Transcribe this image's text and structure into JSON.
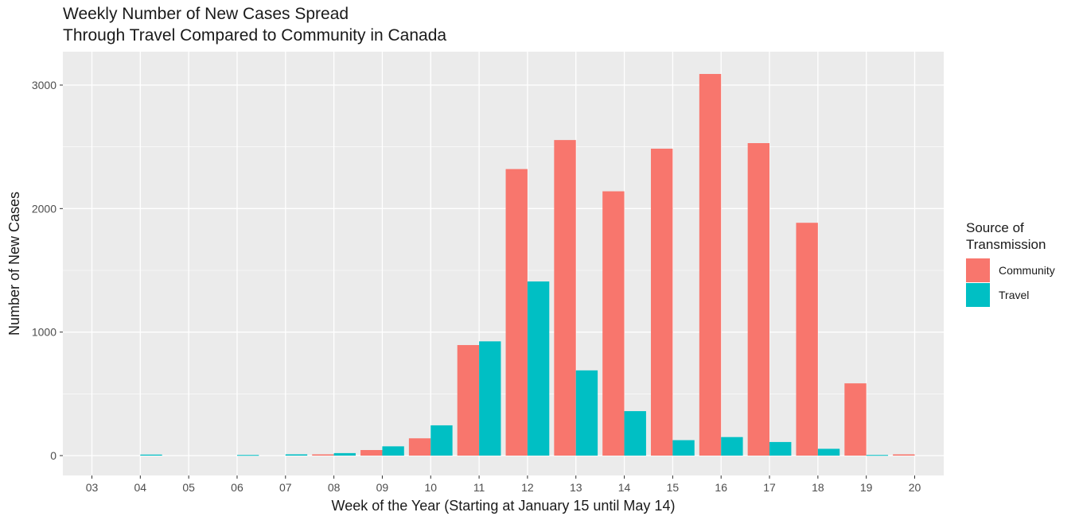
{
  "chart_data": {
    "type": "bar",
    "title_lines": [
      "Weekly Number of New Cases Spread",
      "Through Travel Compared to Community in Canada"
    ],
    "xlabel": "Week of the Year (Starting at January 15 until May 14)",
    "ylabel": "Number of New Cases",
    "categories": [
      "03",
      "04",
      "05",
      "06",
      "07",
      "08",
      "09",
      "10",
      "11",
      "12",
      "13",
      "14",
      "15",
      "16",
      "17",
      "18",
      "19",
      "20"
    ],
    "series": [
      {
        "name": "Community",
        "color": "#F8766D",
        "values": [
          0,
          0,
          0,
          0,
          0,
          10,
          45,
          140,
          895,
          2320,
          2555,
          2140,
          2485,
          3090,
          2530,
          1885,
          585,
          10
        ]
      },
      {
        "name": "Travel",
        "color": "#00BFC4",
        "values": [
          0,
          8,
          0,
          5,
          10,
          20,
          75,
          245,
          925,
          1410,
          690,
          360,
          125,
          150,
          110,
          55,
          5,
          0
        ]
      }
    ],
    "yticks": [
      0,
      1000,
      2000,
      3000
    ],
    "ylim": [
      -150,
      3240
    ],
    "grid": true,
    "legend": {
      "title_lines": [
        "Source of",
        "Transmission"
      ],
      "position": "right"
    },
    "panel_background": "#EBEBEB"
  }
}
